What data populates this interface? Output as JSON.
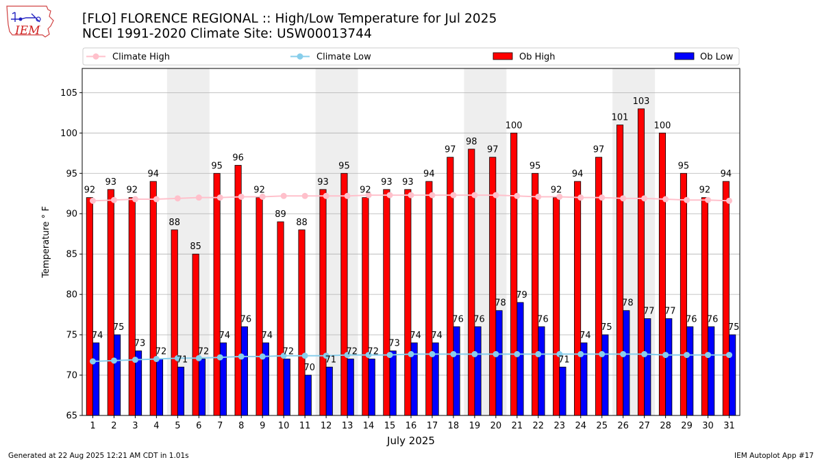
{
  "header": {
    "logo_text": "IEM",
    "title": "[FLO] FLORENCE REGIONAL :: High/Low Temperature for Jul 2025",
    "subtitle": "NCEI 1991-2020 Climate Site: USW00013744"
  },
  "footer": {
    "generated": "Generated at 22 Aug 2025 12:21 AM CDT in 1.01s",
    "app": "IEM Autoplot App #17"
  },
  "colors": {
    "climate_high": "#ffc0cb",
    "climate_low": "#87ceeb",
    "ob_high": "#ff0000",
    "ob_low": "#0000ff",
    "weekend_shade": "#eeeeee",
    "grid": "#b0b0b0"
  },
  "chart_data": {
    "type": "bar",
    "xlabel": "July 2025",
    "ylabel": "Temperature ° F",
    "ylim": [
      65,
      108
    ],
    "xlim": [
      0.5,
      31.5
    ],
    "yticks": [
      65,
      70,
      75,
      80,
      85,
      90,
      95,
      100,
      105
    ],
    "grid": "horizontal",
    "legend": "top, above plot",
    "categories": [
      "1",
      "2",
      "3",
      "4",
      "5",
      "6",
      "7",
      "8",
      "9",
      "10",
      "11",
      "12",
      "13",
      "14",
      "15",
      "16",
      "17",
      "18",
      "19",
      "20",
      "21",
      "22",
      "23",
      "24",
      "25",
      "26",
      "27",
      "28",
      "29",
      "30",
      "31"
    ],
    "shaded_days": [
      [
        5,
        6
      ],
      [
        12,
        13
      ],
      [
        19,
        20
      ],
      [
        26,
        27
      ]
    ],
    "series": [
      {
        "name": "Ob High",
        "kind": "bar",
        "values": [
          92,
          93,
          92,
          94,
          88,
          85,
          95,
          96,
          92,
          89,
          88,
          93,
          95,
          92,
          93,
          93,
          94,
          97,
          98,
          97,
          100,
          95,
          92,
          94,
          97,
          101,
          103,
          100,
          95,
          92,
          94
        ]
      },
      {
        "name": "Ob Low",
        "kind": "bar",
        "values": [
          74,
          75,
          73,
          72,
          71,
          72,
          74,
          76,
          74,
          72,
          70,
          71,
          72,
          72,
          73,
          74,
          74,
          76,
          76,
          78,
          79,
          76,
          71,
          74,
          75,
          78,
          77,
          77,
          76,
          76,
          75
        ]
      },
      {
        "name": "Climate High",
        "kind": "line",
        "values": [
          91.6,
          91.7,
          91.8,
          91.8,
          91.9,
          92.0,
          92.0,
          92.1,
          92.1,
          92.2,
          92.2,
          92.2,
          92.2,
          92.3,
          92.3,
          92.3,
          92.3,
          92.3,
          92.3,
          92.3,
          92.2,
          92.1,
          92.1,
          92.0,
          92.0,
          91.9,
          91.9,
          91.8,
          91.7,
          91.7,
          91.6
        ]
      },
      {
        "name": "Climate Low",
        "kind": "line",
        "values": [
          71.7,
          71.8,
          71.9,
          72.0,
          72.1,
          72.1,
          72.2,
          72.3,
          72.3,
          72.4,
          72.4,
          72.4,
          72.5,
          72.5,
          72.5,
          72.6,
          72.6,
          72.6,
          72.6,
          72.6,
          72.6,
          72.6,
          72.6,
          72.6,
          72.6,
          72.6,
          72.6,
          72.5,
          72.5,
          72.5,
          72.5
        ]
      }
    ]
  }
}
